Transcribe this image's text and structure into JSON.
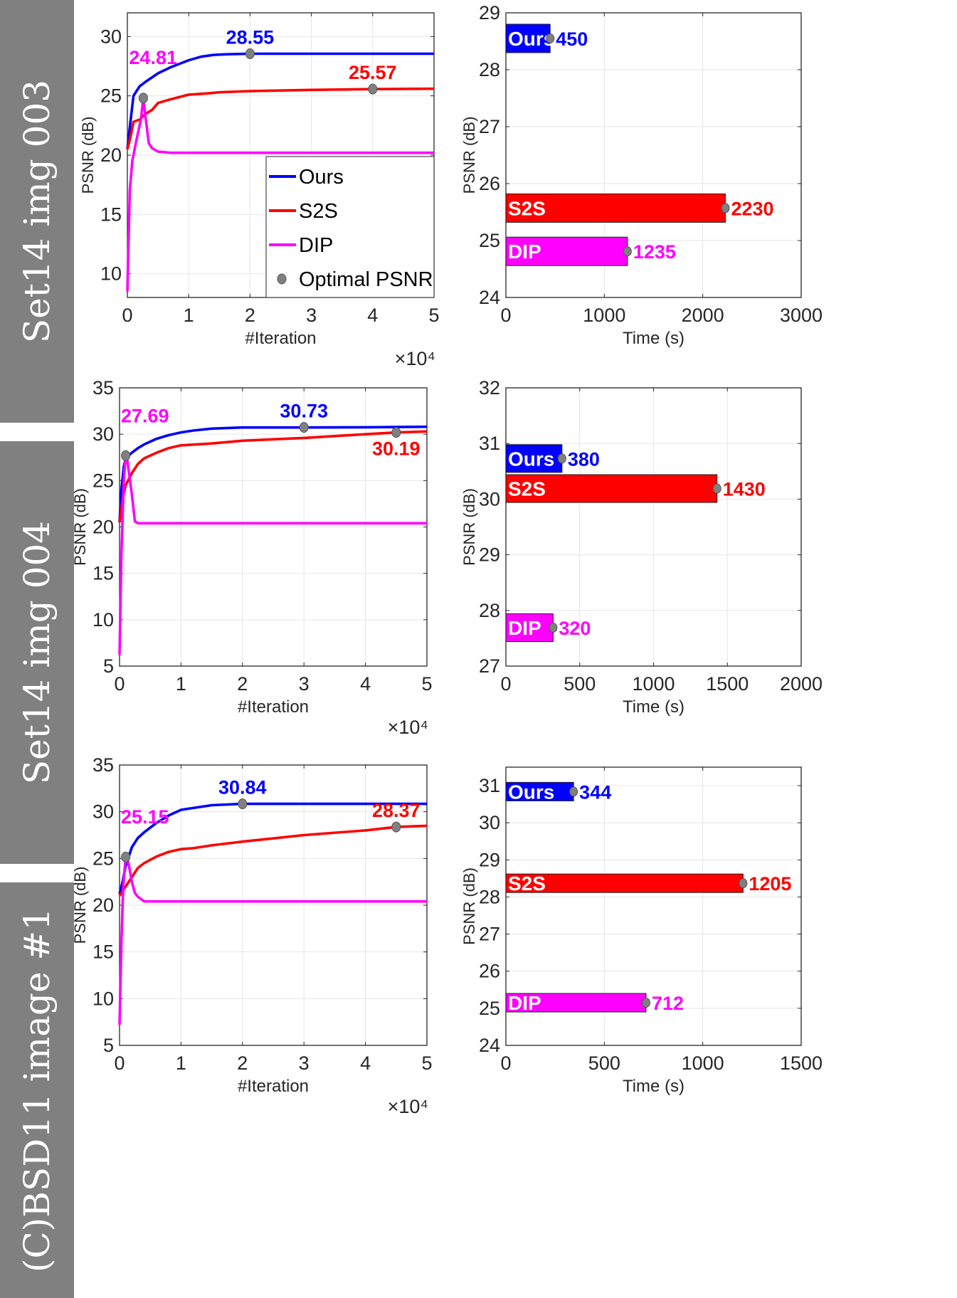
{
  "rows": [
    {
      "label": "Set14 img 003"
    },
    {
      "label": "Set14 img 004"
    },
    {
      "label": "(C)BSD11 image #1"
    }
  ],
  "legend": {
    "items": [
      {
        "label": "Ours",
        "color": "#0000ff"
      },
      {
        "label": "S2S",
        "color": "#ff0000"
      },
      {
        "label": "DIP",
        "color": "#ff00ff"
      },
      {
        "label": "Optimal PSNR",
        "color": "#808080",
        "marker": "circle"
      }
    ]
  },
  "colors": {
    "Ours": "#0000ff",
    "S2S": "#ff0000",
    "DIP": "#ff00ff",
    "optimal": "#808080",
    "grid": "#e6e6e6",
    "row_label_bg": "#808080"
  },
  "chart_data": [
    {
      "type": "line",
      "row": 0,
      "xlabel": "#Iteration",
      "ylabel": "PSNR (dB)",
      "x_multiplier": "×10⁴",
      "xlim": [
        0,
        50000
      ],
      "ylim": [
        8,
        32
      ],
      "xticks": [
        0,
        10000,
        20000,
        30000,
        40000,
        50000
      ],
      "xtick_labels": [
        "0",
        "1",
        "2",
        "3",
        "4",
        "5"
      ],
      "yticks": [
        10,
        15,
        20,
        25,
        30
      ],
      "grid": true,
      "legend_position": "bottom-right",
      "series": [
        {
          "name": "Ours",
          "x": [
            0,
            500,
            1000,
            2000,
            3000,
            5000,
            7000,
            9000,
            10000,
            12000,
            14000,
            16000,
            20000,
            30000,
            40000,
            50000
          ],
          "y": [
            20.5,
            22.8,
            25.0,
            25.8,
            26.2,
            26.9,
            27.4,
            27.8,
            28.0,
            28.3,
            28.45,
            28.5,
            28.55,
            28.55,
            28.55,
            28.55
          ],
          "optimal": {
            "x": 20000,
            "y": 28.55,
            "label": "28.55"
          }
        },
        {
          "name": "S2S",
          "x": [
            0,
            500,
            1000,
            2000,
            3000,
            4000,
            5000,
            7000,
            10000,
            13000,
            15000,
            20000,
            30000,
            40000,
            50000
          ],
          "y": [
            20.5,
            21.5,
            22.8,
            23.0,
            23.5,
            23.8,
            24.4,
            24.7,
            25.1,
            25.2,
            25.3,
            25.4,
            25.5,
            25.57,
            25.6
          ],
          "optimal": {
            "x": 40000,
            "y": 25.57,
            "label": "25.57"
          }
        },
        {
          "name": "DIP",
          "x": [
            0,
            400,
            800,
            1500,
            2200,
            2600,
            3000,
            3500,
            4000,
            5000,
            7000,
            10000,
            20000,
            30000,
            40000,
            50000
          ],
          "y": [
            8.5,
            17.0,
            19.5,
            21.3,
            23.0,
            24.81,
            23.0,
            21.0,
            20.6,
            20.3,
            20.2,
            20.2,
            20.2,
            20.2,
            20.2,
            20.2
          ],
          "optimal": {
            "x": 2600,
            "y": 24.81,
            "label": "24.81"
          }
        }
      ]
    },
    {
      "type": "bar",
      "orientation": "horizontal",
      "row": 0,
      "xlabel": "Time (s)",
      "ylabel": "PSNR (dB)",
      "xlim": [
        0,
        3000
      ],
      "ylim": [
        24,
        29
      ],
      "xticks": [
        0,
        1000,
        2000,
        3000
      ],
      "yticks": [
        24,
        25,
        26,
        27,
        28,
        29
      ],
      "grid": true,
      "bars": [
        {
          "name": "Ours",
          "time": 450,
          "psnr": 28.55,
          "label": "450"
        },
        {
          "name": "S2S",
          "time": 2230,
          "psnr": 25.57,
          "label": "2230"
        },
        {
          "name": "DIP",
          "time": 1235,
          "psnr": 24.81,
          "label": "1235"
        }
      ]
    },
    {
      "type": "line",
      "row": 1,
      "xlabel": "#Iteration",
      "ylabel": "PSNR (dB)",
      "x_multiplier": "×10⁴",
      "xlim": [
        0,
        50000
      ],
      "ylim": [
        5,
        35
      ],
      "xticks": [
        0,
        10000,
        20000,
        30000,
        40000,
        50000
      ],
      "xtick_labels": [
        "0",
        "1",
        "2",
        "3",
        "4",
        "5"
      ],
      "yticks": [
        5,
        10,
        15,
        20,
        25,
        30,
        35
      ],
      "grid": true,
      "series": [
        {
          "name": "Ours",
          "x": [
            0,
            300,
            700,
            1000,
            1500,
            2000,
            3000,
            4000,
            6000,
            8000,
            10000,
            12000,
            15000,
            20000,
            30000,
            40000,
            50000
          ],
          "y": [
            20.5,
            24.0,
            26.5,
            27.4,
            27.7,
            28.0,
            28.5,
            28.9,
            29.5,
            29.9,
            30.2,
            30.4,
            30.6,
            30.73,
            30.73,
            30.75,
            30.8
          ],
          "optimal": {
            "x": 30000,
            "y": 30.73,
            "label": "30.73"
          }
        },
        {
          "name": "S2S",
          "x": [
            0,
            500,
            1000,
            2000,
            3000,
            4000,
            6000,
            8000,
            10000,
            15000,
            20000,
            30000,
            40000,
            45000,
            50000
          ],
          "y": [
            20.5,
            23.0,
            24.5,
            25.8,
            26.8,
            27.4,
            28.0,
            28.5,
            28.8,
            29.0,
            29.3,
            29.6,
            30.0,
            30.19,
            30.3
          ],
          "optimal": {
            "x": 45000,
            "y": 30.19,
            "label": "30.19"
          }
        },
        {
          "name": "DIP",
          "x": [
            0,
            300,
            700,
            1000,
            1200,
            1500,
            2000,
            2500,
            3000,
            5000,
            10000,
            20000,
            30000,
            40000,
            50000
          ],
          "y": [
            6.2,
            17.0,
            25.0,
            27.69,
            27.5,
            26.0,
            23.5,
            20.6,
            20.4,
            20.4,
            20.4,
            20.4,
            20.4,
            20.4,
            20.4
          ],
          "optimal": {
            "x": 1000,
            "y": 27.69,
            "label": "27.69"
          }
        }
      ]
    },
    {
      "type": "bar",
      "orientation": "horizontal",
      "row": 1,
      "xlabel": "Time (s)",
      "ylabel": "PSNR (dB)",
      "xlim": [
        0,
        2000
      ],
      "ylim": [
        27,
        32
      ],
      "xticks": [
        0,
        500,
        1000,
        1500,
        2000
      ],
      "yticks": [
        27,
        28,
        29,
        30,
        31,
        32
      ],
      "grid": true,
      "bars": [
        {
          "name": "Ours",
          "time": 380,
          "psnr": 30.73,
          "label": "380"
        },
        {
          "name": "S2S",
          "time": 1430,
          "psnr": 30.19,
          "label": "1430"
        },
        {
          "name": "DIP",
          "time": 320,
          "psnr": 27.69,
          "label": "320"
        }
      ]
    },
    {
      "type": "line",
      "row": 2,
      "xlabel": "#Iteration",
      "ylabel": "PSNR (dB)",
      "x_multiplier": "×10⁴",
      "xlim": [
        0,
        50000
      ],
      "ylim": [
        5,
        35
      ],
      "xticks": [
        0,
        10000,
        20000,
        30000,
        40000,
        50000
      ],
      "xtick_labels": [
        "0",
        "1",
        "2",
        "3",
        "4",
        "5"
      ],
      "yticks": [
        5,
        10,
        15,
        20,
        25,
        30,
        35
      ],
      "grid": true,
      "series": [
        {
          "name": "Ours",
          "x": [
            0,
            500,
            1000,
            2000,
            3000,
            4000,
            6000,
            8000,
            10000,
            12000,
            15000,
            20000,
            30000,
            40000,
            50000
          ],
          "y": [
            21.2,
            22.5,
            24.2,
            26.2,
            27.2,
            27.8,
            28.8,
            29.6,
            30.2,
            30.4,
            30.7,
            30.84,
            30.84,
            30.84,
            30.84
          ],
          "optimal": {
            "x": 20000,
            "y": 30.84,
            "label": "30.84"
          }
        },
        {
          "name": "S2S",
          "x": [
            0,
            1000,
            2000,
            3000,
            4000,
            6000,
            8000,
            10000,
            12000,
            15000,
            20000,
            30000,
            40000,
            45000,
            50000
          ],
          "y": [
            21.0,
            22.0,
            23.0,
            24.0,
            24.5,
            25.2,
            25.7,
            26.0,
            26.1,
            26.4,
            26.8,
            27.5,
            28.0,
            28.37,
            28.5
          ],
          "optimal": {
            "x": 45000,
            "y": 28.37,
            "label": "28.37"
          }
        },
        {
          "name": "DIP",
          "x": [
            0,
            300,
            600,
            1000,
            1300,
            1600,
            2000,
            2500,
            3000,
            4000,
            6000,
            10000,
            20000,
            30000,
            40000,
            50000
          ],
          "y": [
            7.2,
            16.0,
            22.0,
            25.15,
            25.0,
            24.0,
            22.5,
            21.3,
            20.9,
            20.4,
            20.4,
            20.4,
            20.4,
            20.4,
            20.4,
            20.4
          ],
          "optimal": {
            "x": 1000,
            "y": 25.15,
            "label": "25.15"
          }
        }
      ]
    },
    {
      "type": "bar",
      "orientation": "horizontal",
      "row": 2,
      "xlabel": "Time (s)",
      "ylabel": "PSNR (dB)",
      "xlim": [
        0,
        1500
      ],
      "ylim": [
        24,
        31.5
      ],
      "xticks": [
        0,
        500,
        1000,
        1500
      ],
      "yticks": [
        24,
        25,
        26,
        27,
        28,
        29,
        30,
        31
      ],
      "grid": true,
      "bars": [
        {
          "name": "Ours",
          "time": 344,
          "psnr": 30.84,
          "label": "344"
        },
        {
          "name": "S2S",
          "time": 1205,
          "psnr": 28.37,
          "label": "1205"
        },
        {
          "name": "DIP",
          "time": 712,
          "psnr": 25.15,
          "label": "712"
        }
      ]
    }
  ]
}
